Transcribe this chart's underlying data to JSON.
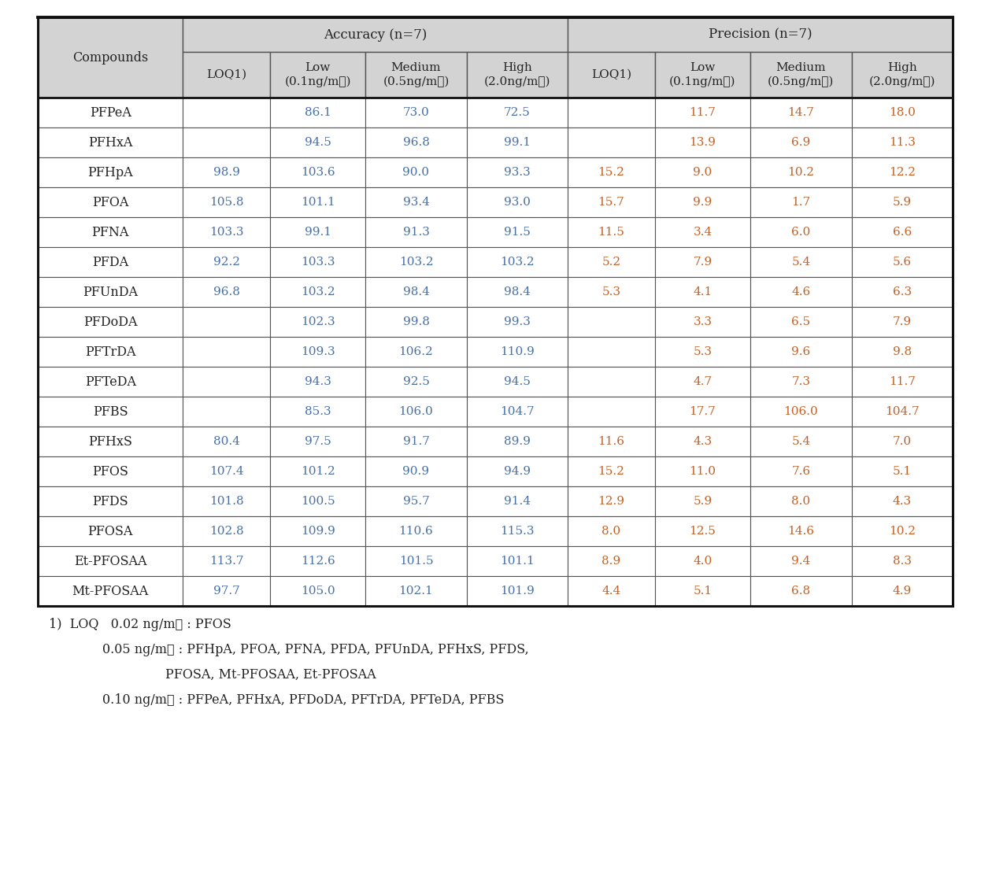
{
  "compounds": [
    "PFPeA",
    "PFHxA",
    "PFHpA",
    "PFOA",
    "PFNA",
    "PFDA",
    "PFUnDA",
    "PFDoDA",
    "PFTrDA",
    "PFTeDA",
    "PFBS",
    "PFHxS",
    "PFOS",
    "PFDS",
    "PFOSA",
    "Et-PFOSAA",
    "Mt-PFOSAA"
  ],
  "accuracy": {
    "LOQ": [
      "",
      "",
      "98.9",
      "105.8",
      "103.3",
      "92.2",
      "96.8",
      "",
      "",
      "",
      "",
      "80.4",
      "107.4",
      "101.8",
      "102.8",
      "113.7",
      "97.7"
    ],
    "Low": [
      "86.1",
      "94.5",
      "103.6",
      "101.1",
      "99.1",
      "103.3",
      "103.2",
      "102.3",
      "109.3",
      "94.3",
      "85.3",
      "97.5",
      "101.2",
      "100.5",
      "109.9",
      "112.6",
      "105.0"
    ],
    "Medium": [
      "73.0",
      "96.8",
      "90.0",
      "93.4",
      "91.3",
      "103.2",
      "98.4",
      "99.8",
      "106.2",
      "92.5",
      "106.0",
      "91.7",
      "90.9",
      "95.7",
      "110.6",
      "101.5",
      "102.1"
    ],
    "High": [
      "72.5",
      "99.1",
      "93.3",
      "93.0",
      "91.5",
      "103.2",
      "98.4",
      "99.3",
      "110.9",
      "94.5",
      "104.7",
      "89.9",
      "94.9",
      "91.4",
      "115.3",
      "101.1",
      "101.9"
    ]
  },
  "precision": {
    "LOQ": [
      "",
      "",
      "15.2",
      "15.7",
      "11.5",
      "5.2",
      "5.3",
      "",
      "",
      "",
      "",
      "11.6",
      "15.2",
      "12.9",
      "8.0",
      "8.9",
      "4.4"
    ],
    "Low": [
      "11.7",
      "13.9",
      "9.0",
      "9.9",
      "3.4",
      "7.9",
      "4.1",
      "3.3",
      "5.3",
      "4.7",
      "17.7",
      "4.3",
      "11.0",
      "5.9",
      "12.5",
      "4.0",
      "5.1"
    ],
    "Medium": [
      "14.7",
      "6.9",
      "10.2",
      "1.7",
      "6.0",
      "5.4",
      "4.6",
      "6.5",
      "9.6",
      "7.3",
      "106.0",
      "5.4",
      "7.6",
      "8.0",
      "14.6",
      "9.4",
      "6.8"
    ],
    "High": [
      "18.0",
      "11.3",
      "12.2",
      "5.9",
      "6.6",
      "5.6",
      "6.3",
      "7.9",
      "9.8",
      "11.7",
      "104.7",
      "7.0",
      "5.1",
      "4.3",
      "10.2",
      "8.3",
      "4.9"
    ]
  },
  "header_bg": "#d3d3d3",
  "row_bg_white": "#ffffff",
  "border_color": "#555555",
  "text_color_compound": "#222222",
  "text_color_data_acc": "#4a6fa5",
  "text_color_data_prec": "#c0622a",
  "text_color_header": "#222222",
  "title_accuracy": "Accuracy (n=7)",
  "title_precision": "Precision (n=7)",
  "col_header_compounds": "Compounds",
  "col_header_loq": "LOQ1)",
  "col_header_low_line1": "Low",
  "col_header_low_line2": "(0.1ng/mℓ)",
  "col_header_medium_line1": "Medium",
  "col_header_medium_line2": "(0.5ng/mℓ)",
  "col_header_high_line1": "High",
  "col_header_high_line2": "(2.0ng/mℓ)",
  "footnote_line1": "1)  LOQ   0.02 ng/mℓ : PFOS",
  "footnote_line2": "0.05 ng/mℓ : PFHpA, PFOA, PFNA, PFDA, PFUnDA, PFHxS, PFDS,",
  "footnote_line3": "PFOSA, Mt-PFOSAA, Et-PFOSAA",
  "footnote_line4": "0.10 ng/mℓ : PFPeA, PFHxA, PFDoDA, PFTrDA, PFTeDA, PFBS"
}
